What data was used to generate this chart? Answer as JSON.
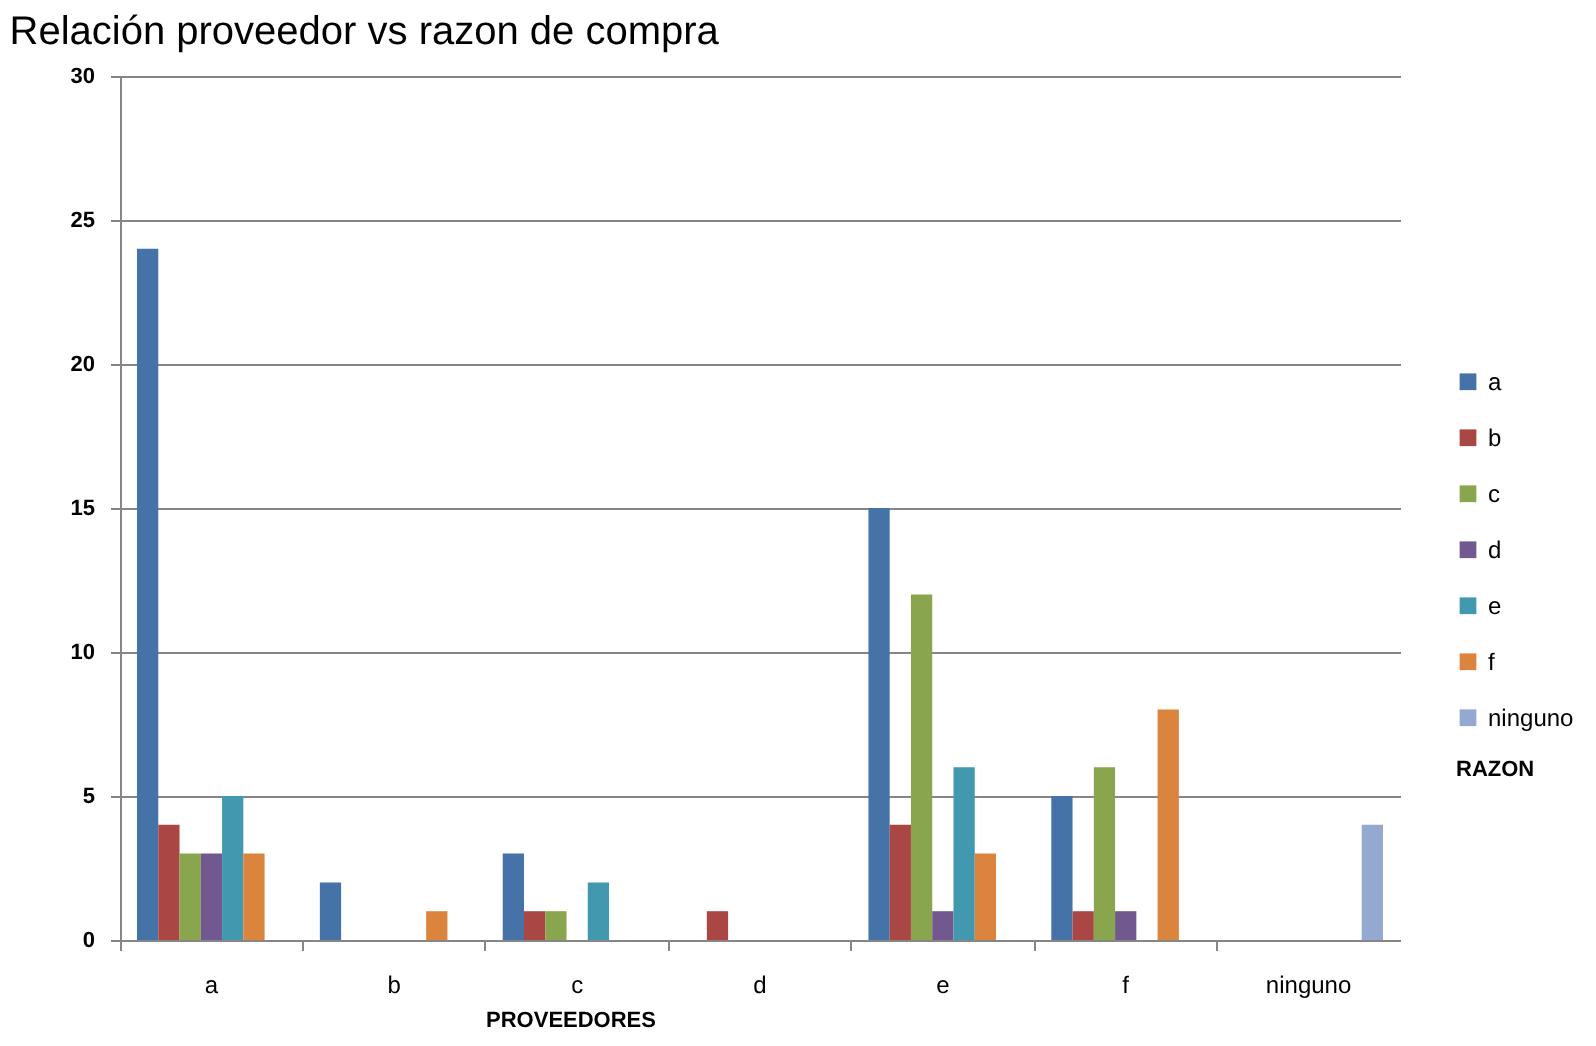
{
  "chart_data": {
    "type": "bar",
    "title": "Relación proveedor vs razon de compra",
    "xlabel": "PROVEEDORES",
    "legend_title": "RAZON",
    "categories": [
      "a",
      "b",
      "c",
      "d",
      "e",
      "f",
      "ninguno"
    ],
    "series": [
      {
        "name": "a",
        "color": "#4572a7",
        "values": [
          24,
          2,
          3,
          null,
          15,
          5,
          null
        ]
      },
      {
        "name": "b",
        "color": "#aa4643",
        "values": [
          4,
          null,
          1,
          1,
          4,
          1,
          null
        ]
      },
      {
        "name": "c",
        "color": "#89a54e",
        "values": [
          3,
          null,
          1,
          null,
          12,
          6,
          null
        ]
      },
      {
        "name": "d",
        "color": "#71588f",
        "values": [
          3,
          null,
          null,
          null,
          1,
          1,
          null
        ]
      },
      {
        "name": "e",
        "color": "#4198af",
        "values": [
          5,
          null,
          2,
          null,
          6,
          null,
          null
        ]
      },
      {
        "name": "f",
        "color": "#db843d",
        "values": [
          3,
          1,
          null,
          null,
          3,
          8,
          null
        ]
      },
      {
        "name": "ninguno",
        "color": "#93a9cf",
        "values": [
          null,
          null,
          null,
          null,
          null,
          null,
          4
        ]
      }
    ],
    "ylim": [
      0,
      30
    ],
    "yticks": [
      0,
      5,
      10,
      15,
      20,
      25,
      30
    ],
    "grid": "y",
    "legend": "right"
  }
}
